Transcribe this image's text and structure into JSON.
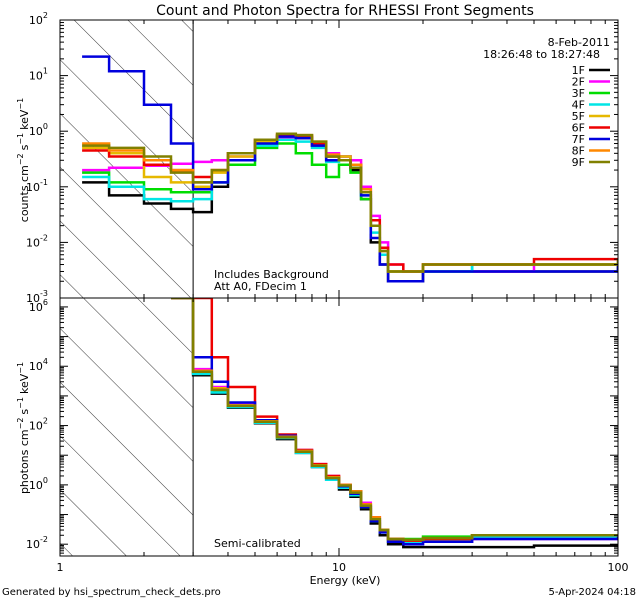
{
  "chart_data": [
    {
      "type": "line",
      "panel": "top",
      "title": "Count and Photon Spectra for RHESSI Front Segments",
      "date": "8-Feb-2011",
      "time_range": "18:26:48 to 18:27:48",
      "ylabel_main": "counts cm",
      "ylabel_unit": "s",
      "ylabel_kev": "keV",
      "annotations": [
        "Includes Background",
        "Att A0, FDecim 1"
      ],
      "xlim": [
        1,
        100
      ],
      "ylim": [
        0.001,
        100
      ],
      "yticks": [
        {
          "value": 0.001,
          "exp": "-3"
        },
        {
          "value": 0.01,
          "exp": "-2"
        },
        {
          "value": 0.1,
          "exp": "-1"
        },
        {
          "value": 1,
          "exp": "0"
        },
        {
          "value": 10,
          "exp": "1"
        },
        {
          "value": 100,
          "exp": "2"
        }
      ],
      "series": [
        {
          "name": "1F",
          "color": "#000000",
          "x": [
            1.2,
            1.5,
            2,
            2.5,
            3,
            3.5,
            4,
            5,
            6,
            7,
            8,
            9,
            10,
            11,
            12,
            13,
            14,
            15,
            17,
            20,
            30,
            50,
            100
          ],
          "y": [
            0.12,
            0.07,
            0.05,
            0.04,
            0.035,
            0.1,
            0.3,
            0.6,
            0.8,
            0.75,
            0.55,
            0.3,
            0.35,
            0.2,
            0.06,
            0.01,
            0.004,
            0.002,
            0.002,
            0.003,
            0.003,
            0.003,
            0.004
          ]
        },
        {
          "name": "2F",
          "color": "#ff00ff",
          "x": [
            1.2,
            1.5,
            2,
            2.5,
            3,
            3.5,
            4,
            5,
            6,
            7,
            8,
            9,
            10,
            11,
            12,
            13,
            14,
            15,
            17,
            20,
            30,
            50,
            100
          ],
          "y": [
            0.2,
            0.22,
            0.24,
            0.26,
            0.28,
            0.3,
            0.35,
            0.55,
            0.75,
            0.78,
            0.6,
            0.4,
            0.35,
            0.3,
            0.1,
            0.03,
            0.01,
            0.004,
            0.003,
            0.003,
            0.003,
            0.004,
            0.004
          ]
        },
        {
          "name": "3F",
          "color": "#00dd00",
          "x": [
            1.2,
            1.5,
            2,
            2.5,
            3,
            3.5,
            4,
            5,
            6,
            7,
            8,
            9,
            10,
            11,
            12,
            13,
            14,
            15,
            17,
            20,
            30,
            50,
            100
          ],
          "y": [
            0.18,
            0.12,
            0.09,
            0.08,
            0.08,
            0.12,
            0.25,
            0.5,
            0.6,
            0.4,
            0.25,
            0.15,
            0.25,
            0.18,
            0.06,
            0.02,
            0.006,
            0.003,
            0.003,
            0.003,
            0.004,
            0.004,
            0.004
          ]
        },
        {
          "name": "4F",
          "color": "#00e5e5",
          "x": [
            1.2,
            1.5,
            2,
            2.5,
            3,
            3.5,
            4,
            5,
            6,
            7,
            8,
            9,
            10,
            11,
            12,
            13,
            14,
            15,
            17,
            20,
            30,
            50,
            100
          ],
          "y": [
            0.15,
            0.1,
            0.06,
            0.055,
            0.06,
            0.12,
            0.3,
            0.55,
            0.7,
            0.65,
            0.5,
            0.28,
            0.3,
            0.22,
            0.07,
            0.015,
            0.006,
            0.003,
            0.003,
            0.003,
            0.004,
            0.004,
            0.005
          ]
        },
        {
          "name": "5F",
          "color": "#e6b800",
          "x": [
            1.2,
            1.5,
            2,
            2.5,
            3,
            3.5,
            4,
            5,
            6,
            7,
            8,
            9,
            10,
            11,
            12,
            13,
            14,
            15,
            17,
            20,
            30,
            50,
            100
          ],
          "y": [
            0.5,
            0.4,
            0.15,
            0.12,
            0.1,
            0.18,
            0.35,
            0.65,
            0.85,
            0.8,
            0.6,
            0.35,
            0.35,
            0.25,
            0.08,
            0.02,
            0.007,
            0.003,
            0.003,
            0.004,
            0.004,
            0.004,
            0.004
          ]
        },
        {
          "name": "6F",
          "color": "#ee0000",
          "x": [
            1.2,
            1.5,
            2,
            2.5,
            3,
            3.5,
            4,
            5,
            6,
            7,
            8,
            9,
            10,
            11,
            12,
            13,
            14,
            15,
            17,
            20,
            30,
            50,
            100
          ],
          "y": [
            0.45,
            0.35,
            0.25,
            0.2,
            0.15,
            0.2,
            0.4,
            0.7,
            0.85,
            0.8,
            0.6,
            0.35,
            0.3,
            0.25,
            0.09,
            0.025,
            0.008,
            0.004,
            0.003,
            0.004,
            0.004,
            0.005,
            0.005
          ]
        },
        {
          "name": "7F",
          "color": "#0000dd",
          "x": [
            1.2,
            1.5,
            2,
            2.5,
            3,
            3.5,
            4,
            5,
            6,
            7,
            8,
            9,
            10,
            11,
            12,
            13,
            14,
            15,
            17,
            20,
            30,
            50,
            100
          ],
          "y": [
            22,
            12,
            3,
            0.6,
            0.09,
            0.12,
            0.3,
            0.6,
            0.8,
            0.75,
            0.55,
            0.3,
            0.3,
            0.22,
            0.07,
            0.012,
            0.004,
            0.002,
            0.002,
            0.003,
            0.003,
            0.003,
            0.004
          ]
        },
        {
          "name": "8F",
          "color": "#ff8800",
          "x": [
            1.2,
            1.5,
            2,
            2.5,
            3,
            3.5,
            4,
            5,
            6,
            7,
            8,
            9,
            10,
            11,
            12,
            13,
            14,
            15,
            17,
            20,
            30,
            50,
            100
          ],
          "y": [
            0.6,
            0.45,
            0.3,
            0.2,
            0.12,
            0.2,
            0.4,
            0.7,
            0.9,
            0.85,
            0.65,
            0.38,
            0.3,
            0.25,
            0.09,
            0.02,
            0.007,
            0.003,
            0.003,
            0.004,
            0.004,
            0.004,
            0.005
          ]
        },
        {
          "name": "9F",
          "color": "#808000",
          "x": [
            1.2,
            1.5,
            2,
            2.5,
            3,
            3.5,
            4,
            5,
            6,
            7,
            8,
            9,
            10,
            11,
            12,
            13,
            14,
            15,
            17,
            20,
            30,
            50,
            100
          ],
          "y": [
            0.55,
            0.5,
            0.35,
            0.18,
            0.12,
            0.2,
            0.4,
            0.7,
            0.9,
            0.85,
            0.65,
            0.35,
            0.3,
            0.22,
            0.08,
            0.02,
            0.007,
            0.003,
            0.003,
            0.004,
            0.004,
            0.004,
            0.005
          ]
        }
      ]
    },
    {
      "type": "line",
      "panel": "bottom",
      "ylabel_main": "photons cm",
      "ylabel_unit": "s",
      "ylabel_kev": "keV",
      "annotations": [
        "Semi-calibrated"
      ],
      "xlabel": "Energy (keV)",
      "xlim": [
        1,
        100
      ],
      "ylim": [
        0.004,
        2000000
      ],
      "xticks": [
        {
          "value": 1,
          "label": "1"
        },
        {
          "value": 10,
          "label": "10"
        },
        {
          "value": 100,
          "label": "100"
        }
      ],
      "yticks": [
        {
          "value": 0.01,
          "exp": "-2"
        },
        {
          "value": 1,
          "exp": "0"
        },
        {
          "value": 100,
          "exp": "2"
        },
        {
          "value": 10000,
          "exp": "4"
        },
        {
          "value": 1000000,
          "exp": "6"
        }
      ],
      "series": [
        {
          "name": "1F",
          "color": "#000000",
          "x": [
            2.5,
            3,
            3.5,
            4,
            5,
            6,
            7,
            8,
            9,
            10,
            11,
            12,
            13,
            14,
            15,
            17,
            20,
            30,
            50,
            100
          ],
          "y": [
            2000000,
            5000,
            1200,
            400,
            120,
            35,
            12,
            4,
            1.5,
            0.7,
            0.4,
            0.15,
            0.05,
            0.02,
            0.01,
            0.008,
            0.008,
            0.008,
            0.009,
            0.01
          ]
        },
        {
          "name": "2F",
          "color": "#ff00ff",
          "x": [
            2.5,
            3,
            3.5,
            4,
            5,
            6,
            7,
            8,
            9,
            10,
            11,
            12,
            13,
            14,
            15,
            17,
            20,
            30,
            50,
            100
          ],
          "y": [
            2000000,
            8000,
            2000,
            500,
            150,
            45,
            15,
            5,
            2,
            1,
            0.6,
            0.25,
            0.08,
            0.03,
            0.015,
            0.01,
            0.012,
            0.015,
            0.015,
            0.015
          ]
        },
        {
          "name": "3F",
          "color": "#00dd00",
          "x": [
            2.5,
            3,
            3.5,
            4,
            5,
            6,
            7,
            8,
            9,
            10,
            11,
            12,
            13,
            14,
            15,
            17,
            20,
            30,
            50,
            100
          ],
          "y": [
            2000000,
            6000,
            1500,
            450,
            130,
            40,
            13,
            4.5,
            1.8,
            1,
            0.6,
            0.2,
            0.07,
            0.03,
            0.015,
            0.015,
            0.018,
            0.02,
            0.02,
            0.02
          ]
        },
        {
          "name": "4F",
          "color": "#00e5e5",
          "x": [
            2.5,
            3,
            3.5,
            4,
            5,
            6,
            7,
            8,
            9,
            10,
            11,
            12,
            13,
            14,
            15,
            17,
            20,
            30,
            50,
            100
          ],
          "y": [
            2000000,
            5500,
            1300,
            420,
            125,
            38,
            12,
            4,
            1.5,
            0.8,
            0.45,
            0.18,
            0.06,
            0.025,
            0.012,
            0.012,
            0.015,
            0.018,
            0.018,
            0.02
          ]
        },
        {
          "name": "5F",
          "color": "#e6b800",
          "x": [
            2.5,
            3,
            3.5,
            4,
            5,
            6,
            7,
            8,
            9,
            10,
            11,
            12,
            13,
            14,
            15,
            17,
            20,
            30,
            50,
            100
          ],
          "y": [
            2000000,
            7000,
            1800,
            480,
            140,
            42,
            14,
            4.8,
            1.9,
            1,
            0.6,
            0.22,
            0.07,
            0.03,
            0.015,
            0.013,
            0.015,
            0.02,
            0.02,
            0.02
          ]
        },
        {
          "name": "6F",
          "color": "#ee0000",
          "x": [
            2.5,
            3,
            3.5,
            4,
            5,
            6,
            7,
            8,
            9,
            10,
            11,
            12,
            13,
            14,
            15,
            17,
            20,
            30,
            50,
            100
          ],
          "y": [
            2000000,
            2000000,
            20000,
            2000,
            200,
            50,
            15,
            5,
            2,
            1,
            0.6,
            0.22,
            0.08,
            0.03,
            0.015,
            0.013,
            0.015,
            0.02,
            0.02,
            0.02
          ]
        },
        {
          "name": "7F",
          "color": "#0000dd",
          "x": [
            2.5,
            3,
            3.5,
            4,
            5,
            6,
            7,
            8,
            9,
            10,
            11,
            12,
            13,
            14,
            15,
            17,
            20,
            30,
            50,
            100
          ],
          "y": [
            2000000,
            20000,
            3000,
            600,
            150,
            45,
            14,
            4.5,
            1.7,
            0.9,
            0.5,
            0.18,
            0.06,
            0.025,
            0.012,
            0.01,
            0.012,
            0.015,
            0.015,
            0.018
          ]
        },
        {
          "name": "8F",
          "color": "#ff8800",
          "x": [
            2.5,
            3,
            3.5,
            4,
            5,
            6,
            7,
            8,
            9,
            10,
            11,
            12,
            13,
            14,
            15,
            17,
            20,
            30,
            50,
            100
          ],
          "y": [
            2000000,
            7000,
            1700,
            470,
            140,
            42,
            14,
            4.6,
            1.8,
            1,
            0.6,
            0.22,
            0.08,
            0.03,
            0.015,
            0.014,
            0.016,
            0.02,
            0.02,
            0.02
          ]
        },
        {
          "name": "9F",
          "color": "#808000",
          "x": [
            2.5,
            3,
            3.5,
            4,
            5,
            6,
            7,
            8,
            9,
            10,
            11,
            12,
            13,
            14,
            15,
            17,
            20,
            30,
            50,
            100
          ],
          "y": [
            2000000,
            6500,
            1600,
            460,
            135,
            40,
            13,
            4.4,
            1.7,
            0.95,
            0.55,
            0.2,
            0.07,
            0.03,
            0.015,
            0.014,
            0.016,
            0.02,
            0.02,
            0.02
          ]
        }
      ]
    }
  ],
  "footer": {
    "generated_by": "Generated by hsi_spectrum_check_dets.pro",
    "timestamp": "5-Apr-2024 04:18"
  }
}
